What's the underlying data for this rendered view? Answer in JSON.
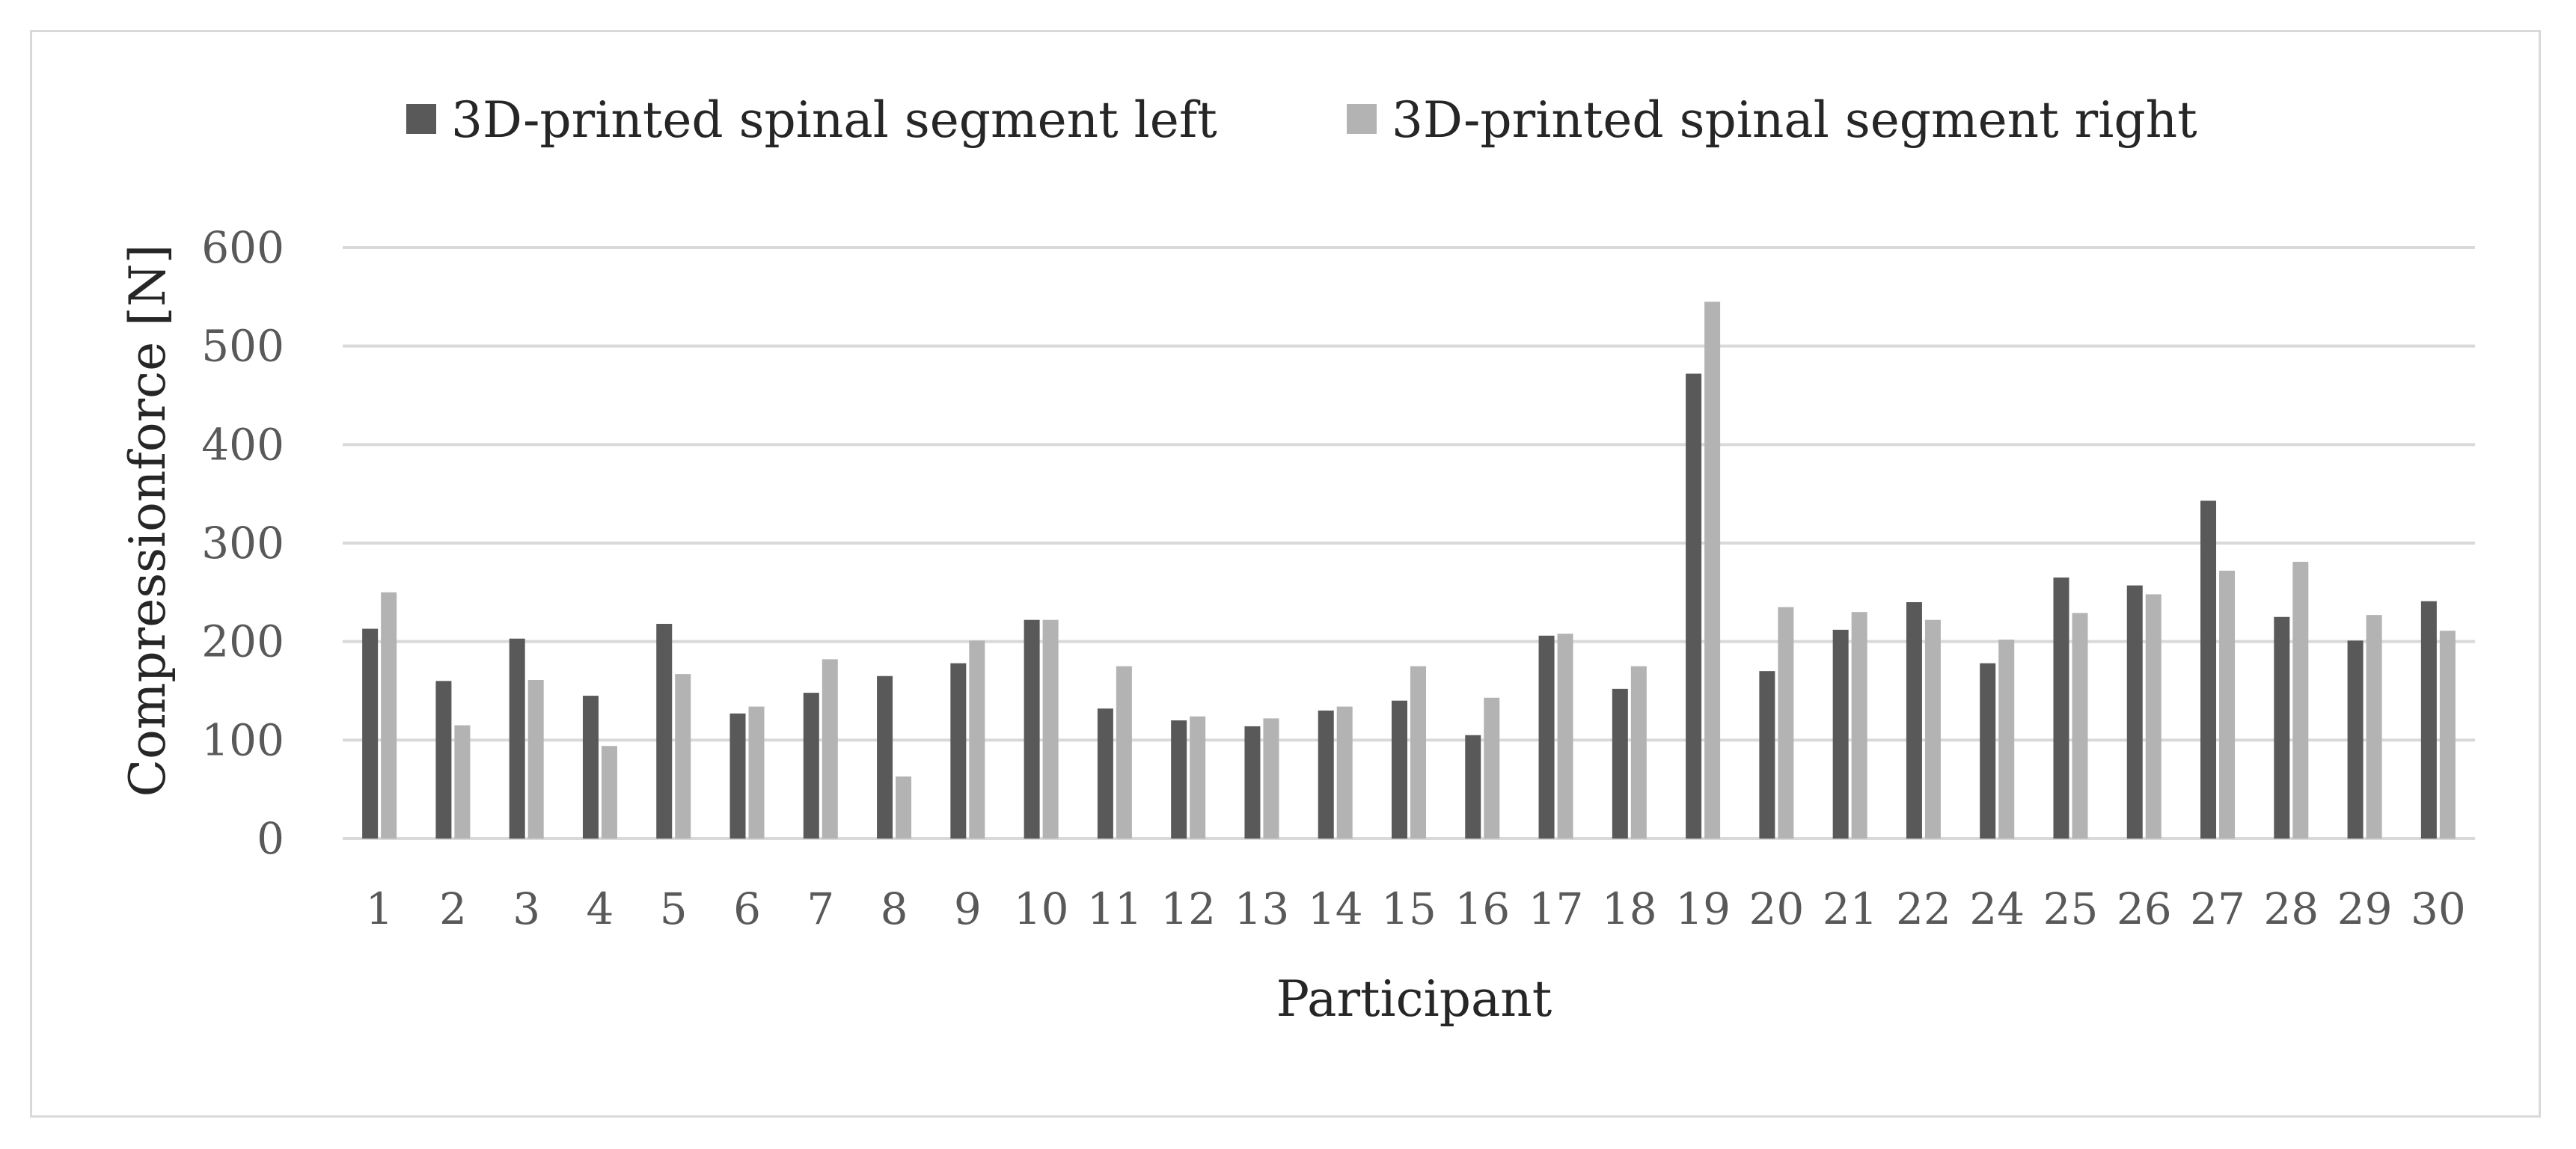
{
  "chart_data": {
    "type": "bar",
    "title": "",
    "xlabel": "Participant",
    "ylabel": "Compressionforce [N]",
    "ylim": [
      0,
      600
    ],
    "yticks": [
      "0",
      "100",
      "200",
      "300",
      "400",
      "500",
      "600"
    ],
    "grid": true,
    "legend_position": "top",
    "categories": [
      "1",
      "2",
      "3",
      "4",
      "5",
      "6",
      "7",
      "8",
      "9",
      "10",
      "11",
      "12",
      "13",
      "14",
      "15",
      "16",
      "17",
      "18",
      "19",
      "20",
      "21",
      "22",
      "24",
      "25",
      "26",
      "27",
      "28",
      "29",
      "30"
    ],
    "series": [
      {
        "name": "3D-printed spinal segment left",
        "color": "#595959",
        "values": [
          213,
          160,
          203,
          145,
          218,
          127,
          148,
          165,
          178,
          222,
          132,
          120,
          114,
          130,
          140,
          105,
          206,
          152,
          472,
          170,
          212,
          240,
          178,
          265,
          257,
          343,
          225,
          201,
          241
        ]
      },
      {
        "name": "3D-printed spinal segment right",
        "color": "#b3b3b3",
        "values": [
          250,
          115,
          161,
          94,
          167,
          134,
          182,
          63,
          201,
          222,
          175,
          124,
          122,
          134,
          175,
          143,
          208,
          175,
          545,
          235,
          230,
          222,
          202,
          229,
          248,
          272,
          281,
          227,
          211
        ]
      }
    ]
  }
}
